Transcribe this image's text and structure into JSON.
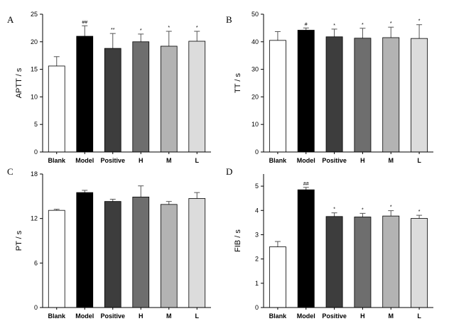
{
  "chart_data": [
    {
      "type": "bar",
      "panel": "A",
      "title": "",
      "xlabel": "",
      "ylabel": "APTT / s",
      "ylim": [
        0,
        25
      ],
      "yticks": [
        0,
        5,
        10,
        15,
        20,
        25
      ],
      "categories": [
        "Blank",
        "Model",
        "Positive",
        "H",
        "M",
        "L"
      ],
      "values": [
        15.6,
        21.0,
        18.8,
        20.0,
        19.2,
        20.1
      ],
      "errors": [
        1.7,
        1.9,
        2.7,
        1.4,
        2.7,
        1.8
      ],
      "significance": [
        "",
        "##",
        "**",
        "*",
        "*",
        "*"
      ],
      "colors": [
        "#ffffff",
        "#000000",
        "#3d3d3d",
        "#6e6e6e",
        "#b3b3b3",
        "#dcdcdc"
      ],
      "grid": false
    },
    {
      "type": "bar",
      "panel": "B",
      "title": "",
      "xlabel": "",
      "ylabel": "TT / s",
      "ylim": [
        0,
        50
      ],
      "yticks": [
        0,
        10,
        20,
        30,
        40,
        50
      ],
      "categories": [
        "Blank",
        "Model",
        "Positive",
        "H",
        "M",
        "L"
      ],
      "values": [
        40.5,
        44.2,
        41.8,
        41.3,
        41.5,
        41.2
      ],
      "errors": [
        3.2,
        0.8,
        2.8,
        3.6,
        3.8,
        5.0
      ],
      "significance": [
        "",
        "#",
        "*",
        "*",
        "*",
        "*"
      ],
      "colors": [
        "#ffffff",
        "#000000",
        "#3d3d3d",
        "#6e6e6e",
        "#b3b3b3",
        "#dcdcdc"
      ],
      "grid": false
    },
    {
      "type": "bar",
      "panel": "C",
      "title": "",
      "xlabel": "",
      "ylabel": "PT / s",
      "ylim": [
        0,
        18
      ],
      "yticks": [
        0,
        6,
        12,
        18
      ],
      "categories": [
        "Blank",
        "Model",
        "Positive",
        "H",
        "M",
        "L"
      ],
      "values": [
        13.1,
        15.5,
        14.3,
        14.9,
        13.9,
        14.7
      ],
      "errors": [
        0.15,
        0.3,
        0.3,
        1.5,
        0.4,
        0.8
      ],
      "significance": [
        "",
        "",
        "",
        "",
        "",
        ""
      ],
      "colors": [
        "#ffffff",
        "#000000",
        "#3d3d3d",
        "#6e6e6e",
        "#b3b3b3",
        "#dcdcdc"
      ],
      "grid": false
    },
    {
      "type": "bar",
      "panel": "D",
      "title": "",
      "xlabel": "",
      "ylabel": "FIB / s",
      "ylim": [
        0,
        5.5
      ],
      "yticks": [
        0,
        1,
        2,
        3,
        4,
        5
      ],
      "categories": [
        "Blank",
        "Model",
        "Positive",
        "H",
        "M",
        "L"
      ],
      "values": [
        2.5,
        4.85,
        3.75,
        3.73,
        3.77,
        3.67
      ],
      "errors": [
        0.22,
        0.1,
        0.15,
        0.15,
        0.22,
        0.13
      ],
      "significance": [
        "",
        "##",
        "*",
        "*",
        "*",
        "*"
      ],
      "colors": [
        "#ffffff",
        "#000000",
        "#3d3d3d",
        "#6e6e6e",
        "#b3b3b3",
        "#dcdcdc"
      ],
      "grid": false
    }
  ]
}
